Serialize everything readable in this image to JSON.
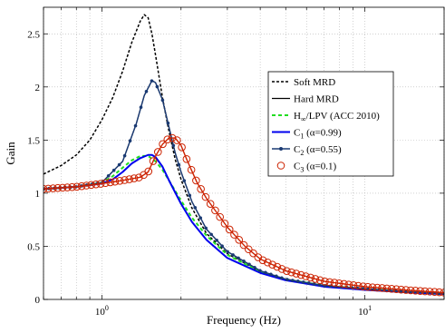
{
  "chart_data": {
    "type": "line",
    "title": "",
    "xlabel": "Frequency (Hz)",
    "ylabel": "Gain",
    "xscale": "log",
    "xlim": [
      0.6,
      20
    ],
    "ylim": [
      0,
      2.75
    ],
    "grid": true,
    "legend_position": "right-center",
    "x_ticks": [
      {
        "value": 1,
        "base": "10",
        "exp": "0"
      },
      {
        "value": 10,
        "base": "10",
        "exp": "1"
      }
    ],
    "y_ticks": [
      {
        "value": 0,
        "label": "0"
      },
      {
        "value": 0.5,
        "label": "0.5"
      },
      {
        "value": 1,
        "label": "1"
      },
      {
        "value": 1.5,
        "label": "1.5"
      },
      {
        "value": 2,
        "label": "2"
      },
      {
        "value": 2.5,
        "label": "2.5"
      }
    ],
    "series": [
      {
        "key": "soft_mrd",
        "name": "Soft MRD",
        "legend": {
          "main": "Soft MRD"
        },
        "color": "#000000",
        "dash": "3,2",
        "width": 1.5,
        "marker": "none",
        "x": [
          0.6,
          0.7,
          0.8,
          0.9,
          1.0,
          1.1,
          1.2,
          1.3,
          1.4,
          1.45,
          1.5,
          1.55,
          1.6,
          1.7,
          1.8,
          1.9,
          2.0,
          2.2,
          2.5,
          3.0,
          4.0,
          5.0,
          7.0,
          10.0,
          15.0,
          20.0
        ],
        "y": [
          1.18,
          1.26,
          1.36,
          1.5,
          1.69,
          1.9,
          2.15,
          2.42,
          2.62,
          2.68,
          2.65,
          2.5,
          2.3,
          1.9,
          1.58,
          1.32,
          1.13,
          0.86,
          0.62,
          0.43,
          0.26,
          0.19,
          0.13,
          0.1,
          0.07,
          0.055
        ]
      },
      {
        "key": "hard_mrd",
        "name": "Hard MRD",
        "legend": {
          "main": "Hard MRD"
        },
        "color": "#000000",
        "dash": "",
        "width": 1.2,
        "marker": "none",
        "x": [
          0.6,
          0.8,
          1.0,
          1.2,
          1.35,
          1.45,
          1.55,
          1.6,
          1.7,
          1.8,
          1.9,
          2.0,
          2.2,
          2.5,
          3.0,
          4.0,
          5.0,
          7.0,
          10.0,
          15.0,
          20.0
        ],
        "y": [
          1.04,
          1.06,
          1.1,
          1.3,
          1.65,
          1.92,
          2.06,
          2.04,
          1.88,
          1.62,
          1.38,
          1.2,
          0.92,
          0.66,
          0.45,
          0.27,
          0.19,
          0.13,
          0.1,
          0.07,
          0.055
        ]
      },
      {
        "key": "hinf_lpv",
        "name": "H∞/LPV (ACC 2010)",
        "legend": {
          "main": "H",
          "sub": "∞",
          "rest": "/LPV (ACC 2010)"
        },
        "color": "#22dd22",
        "dash": "4,3",
        "width": 2,
        "marker": "none",
        "x": [
          0.6,
          0.8,
          1.0,
          1.1,
          1.2,
          1.3,
          1.4,
          1.5,
          1.6,
          1.7,
          1.8,
          2.0,
          2.2,
          2.5,
          3.0,
          4.0,
          5.0,
          7.0,
          10.0,
          15.0,
          20.0
        ],
        "y": [
          1.04,
          1.06,
          1.1,
          1.16,
          1.24,
          1.31,
          1.35,
          1.35,
          1.3,
          1.22,
          1.12,
          0.93,
          0.77,
          0.6,
          0.42,
          0.26,
          0.19,
          0.13,
          0.1,
          0.07,
          0.055
        ]
      },
      {
        "key": "c1",
        "name": "C1 (α=0.99)",
        "legend": {
          "main": "C",
          "sub": "1",
          "rest": " (α=0.99)"
        },
        "color": "#0000ee",
        "dash": "",
        "width": 2,
        "marker": "none",
        "x": [
          0.6,
          0.8,
          1.0,
          1.1,
          1.2,
          1.3,
          1.4,
          1.5,
          1.55,
          1.6,
          1.7,
          1.8,
          2.0,
          2.2,
          2.5,
          3.0,
          4.0,
          5.0,
          7.0,
          10.0,
          15.0,
          20.0
        ],
        "y": [
          1.04,
          1.06,
          1.09,
          1.13,
          1.2,
          1.28,
          1.33,
          1.36,
          1.36,
          1.34,
          1.25,
          1.12,
          0.9,
          0.73,
          0.56,
          0.39,
          0.25,
          0.18,
          0.12,
          0.09,
          0.065,
          0.05
        ]
      },
      {
        "key": "c2",
        "name": "C2 (α=0.55)",
        "legend": {
          "main": "C",
          "sub": "2",
          "rest": " (α=0.55)"
        },
        "color": "#1a3a73",
        "dash": "",
        "width": 1.4,
        "marker": "dot",
        "x": [
          0.6,
          0.8,
          1.0,
          1.2,
          1.35,
          1.45,
          1.55,
          1.6,
          1.7,
          1.8,
          1.9,
          2.0,
          2.2,
          2.5,
          3.0,
          4.0,
          5.0,
          7.0,
          10.0,
          15.0,
          20.0
        ],
        "y": [
          1.04,
          1.06,
          1.1,
          1.3,
          1.65,
          1.92,
          2.06,
          2.04,
          1.88,
          1.62,
          1.38,
          1.2,
          0.92,
          0.66,
          0.45,
          0.27,
          0.19,
          0.13,
          0.1,
          0.07,
          0.055
        ]
      },
      {
        "key": "c3",
        "name": "C3 (α=0.1)",
        "legend": {
          "main": "C",
          "sub": "3",
          "rest": " (α=0.1)"
        },
        "color": "#cc2200",
        "dash": "",
        "width": 1.4,
        "marker": "circle",
        "x": [
          0.6,
          0.8,
          1.0,
          1.2,
          1.4,
          1.5,
          1.6,
          1.7,
          1.8,
          1.9,
          2.0,
          2.1,
          2.3,
          2.5,
          3.0,
          3.5,
          4.0,
          5.0,
          7.0,
          10.0,
          15.0,
          20.0
        ],
        "y": [
          1.04,
          1.06,
          1.09,
          1.12,
          1.15,
          1.2,
          1.35,
          1.46,
          1.52,
          1.52,
          1.45,
          1.32,
          1.1,
          0.95,
          0.68,
          0.5,
          0.38,
          0.27,
          0.17,
          0.12,
          0.085,
          0.065
        ]
      }
    ]
  }
}
